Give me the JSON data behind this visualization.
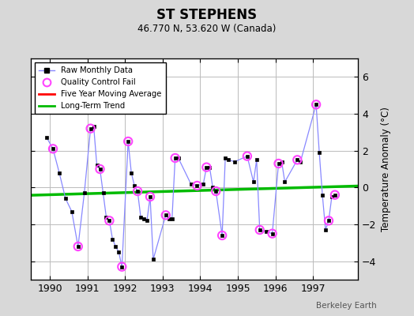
{
  "title": "ST STEPHENS",
  "subtitle": "46.770 N, 53.620 W (Canada)",
  "ylabel": "Temperature Anomaly (°C)",
  "watermark": "Berkeley Earth",
  "xlim": [
    1989.5,
    1998.2
  ],
  "ylim": [
    -5.0,
    7.0
  ],
  "yticks": [
    -4,
    -2,
    0,
    2,
    4,
    6
  ],
  "xticks": [
    1990,
    1991,
    1992,
    1993,
    1994,
    1995,
    1996,
    1997
  ],
  "background_color": "#d8d8d8",
  "plot_bg_color": "#ffffff",
  "grid_color": "#bbbbbb",
  "raw_x": [
    1989.917,
    1990.083,
    1990.25,
    1990.417,
    1990.583,
    1990.75,
    1990.917,
    1991.083,
    1991.167,
    1991.25,
    1991.333,
    1991.417,
    1991.5,
    1991.583,
    1991.667,
    1991.75,
    1991.833,
    1991.917,
    1992.083,
    1992.167,
    1992.25,
    1992.333,
    1992.417,
    1992.5,
    1992.583,
    1992.667,
    1992.75,
    1993.083,
    1993.167,
    1993.25,
    1993.333,
    1993.417,
    1993.75,
    1993.917,
    1994.083,
    1994.167,
    1994.25,
    1994.333,
    1994.417,
    1994.583,
    1994.667,
    1994.75,
    1994.917,
    1995.25,
    1995.417,
    1995.5,
    1995.583,
    1995.75,
    1995.917,
    1996.083,
    1996.167,
    1996.25,
    1996.583,
    1996.667,
    1997.083,
    1997.167,
    1997.25,
    1997.333,
    1997.417,
    1997.5,
    1997.583
  ],
  "raw_y": [
    2.7,
    2.1,
    0.8,
    -0.6,
    -1.3,
    -3.2,
    -0.3,
    3.2,
    3.3,
    1.2,
    1.0,
    -0.3,
    -1.6,
    -1.8,
    -2.8,
    -3.2,
    -3.5,
    -4.3,
    2.5,
    0.8,
    0.1,
    -0.2,
    -1.6,
    -1.7,
    -1.8,
    -0.5,
    -3.9,
    -1.5,
    -1.7,
    -1.7,
    1.6,
    1.6,
    0.2,
    0.1,
    0.2,
    1.1,
    1.1,
    0.0,
    -0.2,
    -2.6,
    1.6,
    1.5,
    1.4,
    1.7,
    0.3,
    1.5,
    -2.3,
    -2.4,
    -2.5,
    1.3,
    1.4,
    0.3,
    1.5,
    1.4,
    4.5,
    1.9,
    -0.4,
    -2.3,
    -1.8,
    -0.5,
    -0.4
  ],
  "qc_fail_x": [
    1990.083,
    1990.75,
    1991.083,
    1991.333,
    1991.583,
    1991.917,
    1992.083,
    1992.333,
    1992.667,
    1993.083,
    1993.333,
    1993.917,
    1994.167,
    1994.417,
    1994.583,
    1995.25,
    1995.583,
    1995.917,
    1996.083,
    1996.583,
    1997.083,
    1997.417,
    1997.583
  ],
  "qc_fail_y": [
    2.1,
    -3.2,
    3.2,
    1.0,
    -1.8,
    -4.3,
    2.5,
    -0.2,
    -0.5,
    -1.5,
    1.6,
    0.1,
    1.1,
    -0.2,
    -2.6,
    1.7,
    -2.3,
    -2.5,
    1.3,
    1.5,
    4.5,
    -1.8,
    -0.4
  ],
  "trend_x": [
    1989.5,
    1998.2
  ],
  "trend_y": [
    -0.42,
    0.08
  ],
  "line_color": "#8888ff",
  "marker_color": "#000000",
  "qc_color": "#ff44ff",
  "trend_color": "#00bb00",
  "moving_avg_color": "#ff0000"
}
